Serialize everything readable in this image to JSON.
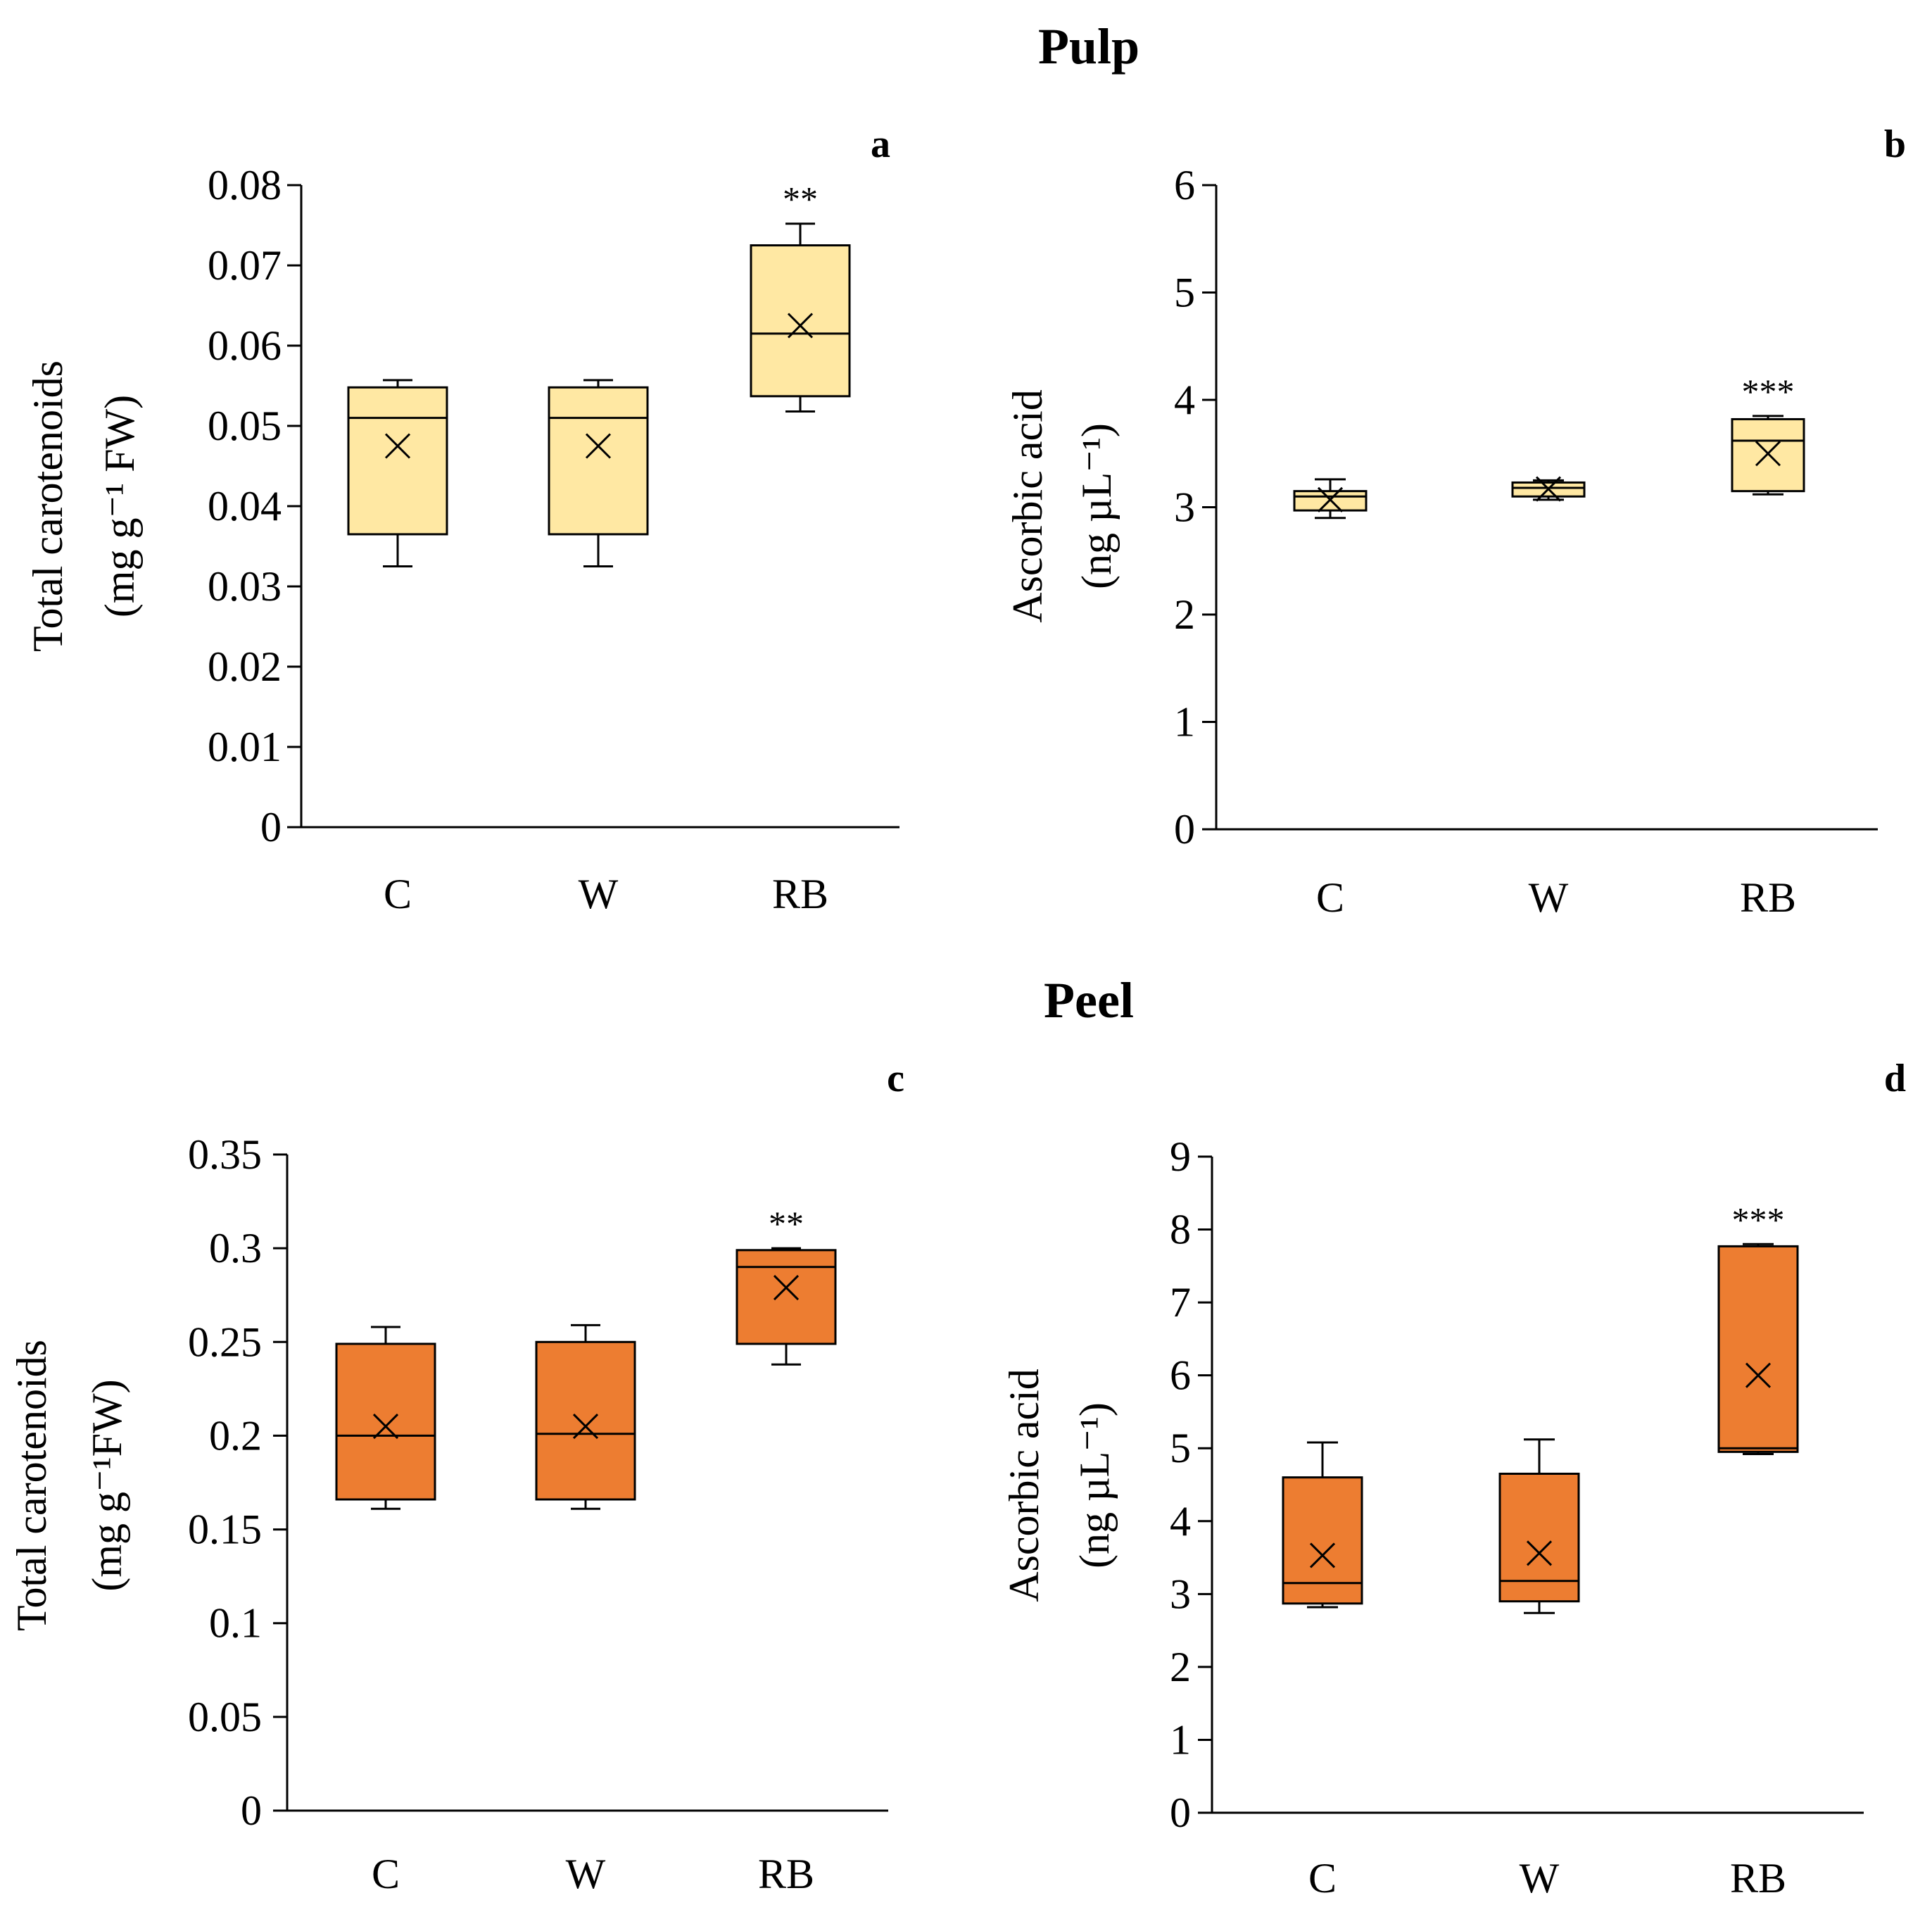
{
  "sections": [
    {
      "title": "Pulp"
    },
    {
      "title": "Peel"
    }
  ],
  "chart_data": [
    {
      "type": "box",
      "panel": "a",
      "section": "Pulp",
      "ylabel_line1": "Total carotenoids",
      "ylabel_line2": "(mg g⁻¹ FW)",
      "ylim": [
        0,
        0.08
      ],
      "yticks": [
        0,
        0.01,
        0.02,
        0.03,
        0.04,
        0.05,
        0.06,
        0.07,
        0.08
      ],
      "ytick_labels": [
        "0",
        "0.01",
        "0.02",
        "0.03",
        "0.04",
        "0.05",
        "0.06",
        "0.07",
        "0.08"
      ],
      "categories": [
        "C",
        "W",
        "RB"
      ],
      "fill": "#FFE8A3",
      "boxes": [
        {
          "min": 0.0325,
          "q1": 0.0365,
          "median": 0.051,
          "q3": 0.0548,
          "max": 0.0557,
          "mean": 0.0475,
          "sig": ""
        },
        {
          "min": 0.0325,
          "q1": 0.0365,
          "median": 0.051,
          "q3": 0.0548,
          "max": 0.0557,
          "mean": 0.0475,
          "sig": ""
        },
        {
          "min": 0.0518,
          "q1": 0.0537,
          "median": 0.0615,
          "q3": 0.0725,
          "max": 0.0752,
          "mean": 0.0625,
          "sig": "**"
        }
      ]
    },
    {
      "type": "box",
      "panel": "b",
      "section": "Pulp",
      "ylabel_line1": "Ascorbic acid",
      "ylabel_line2": "(ng µL⁻¹)",
      "ylim": [
        0,
        6
      ],
      "yticks": [
        0,
        1,
        2,
        3,
        4,
        5,
        6
      ],
      "ytick_labels": [
        "0",
        "1",
        "2",
        "3",
        "4",
        "5",
        "6"
      ],
      "categories": [
        "C",
        "W",
        "RB"
      ],
      "fill": "#FFE8A3",
      "boxes": [
        {
          "min": 2.9,
          "q1": 2.97,
          "median": 3.1,
          "q3": 3.15,
          "max": 3.26,
          "mean": 3.07,
          "sig": ""
        },
        {
          "min": 3.07,
          "q1": 3.1,
          "median": 3.18,
          "q3": 3.23,
          "max": 3.25,
          "mean": 3.17,
          "sig": ""
        },
        {
          "min": 3.12,
          "q1": 3.15,
          "median": 3.62,
          "q3": 3.82,
          "max": 3.85,
          "mean": 3.5,
          "sig": "***"
        }
      ]
    },
    {
      "type": "box",
      "panel": "c",
      "section": "Peel",
      "ylabel_line1": "Total carotenoids",
      "ylabel_line2": "(mg g⁻¹FW)",
      "ylim": [
        0,
        0.35
      ],
      "yticks": [
        0,
        0.05,
        0.1,
        0.15,
        0.2,
        0.25,
        0.3,
        0.35
      ],
      "ytick_labels": [
        "0",
        "0.05",
        "0.1",
        "0.15",
        "0.2",
        "0.25",
        "0.3",
        "0.35"
      ],
      "categories": [
        "C",
        "W",
        "RB"
      ],
      "fill": "#ED7D31",
      "boxes": [
        {
          "min": 0.161,
          "q1": 0.166,
          "median": 0.2,
          "q3": 0.249,
          "max": 0.258,
          "mean": 0.205,
          "sig": ""
        },
        {
          "min": 0.161,
          "q1": 0.166,
          "median": 0.201,
          "q3": 0.25,
          "max": 0.259,
          "mean": 0.205,
          "sig": ""
        },
        {
          "min": 0.238,
          "q1": 0.249,
          "median": 0.29,
          "q3": 0.299,
          "max": 0.3,
          "mean": 0.279,
          "sig": "**"
        }
      ]
    },
    {
      "type": "box",
      "panel": "d",
      "section": "Peel",
      "ylabel_line1": "Ascorbic acid",
      "ylabel_line2": "(ng µL⁻¹)",
      "ylim": [
        0,
        9
      ],
      "yticks": [
        0,
        1,
        2,
        3,
        4,
        5,
        6,
        7,
        8,
        9
      ],
      "ytick_labels": [
        "0",
        "1",
        "2",
        "3",
        "4",
        "5",
        "6",
        "7",
        "8",
        "9"
      ],
      "categories": [
        "C",
        "W",
        "RB"
      ],
      "fill": "#ED7D31",
      "boxes": [
        {
          "min": 2.82,
          "q1": 2.87,
          "median": 3.15,
          "q3": 4.6,
          "max": 5.08,
          "mean": 3.53,
          "sig": ""
        },
        {
          "min": 2.74,
          "q1": 2.9,
          "median": 3.18,
          "q3": 4.65,
          "max": 5.12,
          "mean": 3.56,
          "sig": ""
        },
        {
          "min": 4.92,
          "q1": 4.95,
          "median": 5.0,
          "q3": 7.77,
          "max": 7.8,
          "mean": 6.0,
          "sig": "***"
        }
      ]
    }
  ]
}
